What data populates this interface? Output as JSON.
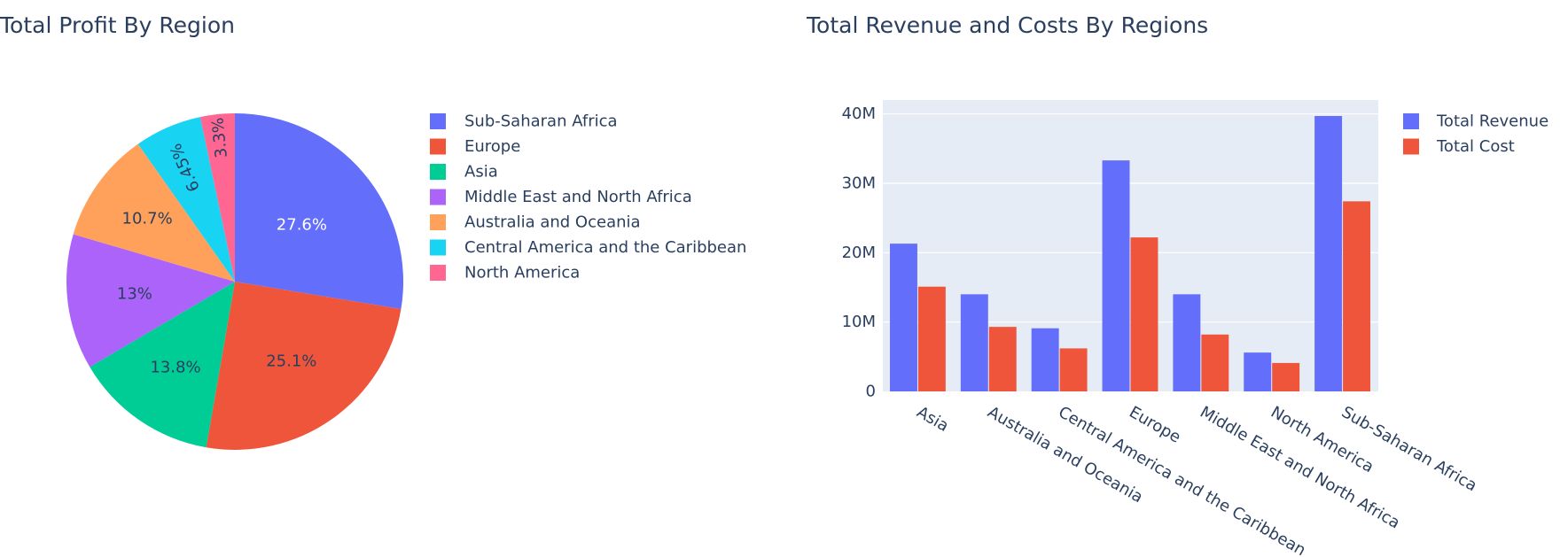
{
  "pie": {
    "title": "Total Profit By Region",
    "chart_data": {
      "type": "pie",
      "title": "Total Profit By Region",
      "legend_position": "right",
      "slices": [
        {
          "label": "Sub-Saharan Africa",
          "value": 27.6,
          "text": "27.6%",
          "color": "#636efa"
        },
        {
          "label": "Europe",
          "value": 25.1,
          "text": "25.1%",
          "color": "#ef553b"
        },
        {
          "label": "Asia",
          "value": 13.8,
          "text": "13.8%",
          "color": "#00cc96"
        },
        {
          "label": "Middle East and North Africa",
          "value": 13.0,
          "text": "13%",
          "color": "#ab63fa"
        },
        {
          "label": "Australia and Oceania",
          "value": 10.7,
          "text": "10.7%",
          "color": "#ffa15a"
        },
        {
          "label": "Central America and the Caribbean",
          "value": 6.45,
          "text": "6.45%",
          "color": "#19d3f3"
        },
        {
          "label": "North America",
          "value": 3.3,
          "text": "3.3%",
          "color": "#ff6692"
        }
      ]
    }
  },
  "bar": {
    "title": "Total Revenue and Costs By Regions",
    "chart_data": {
      "type": "bar",
      "title": "Total Revenue and Costs By Regions",
      "categories": [
        "Asia",
        "Australia and Oceania",
        "Central America and the Caribbean",
        "Europe",
        "Middle East and North Africa",
        "North America",
        "Sub-Saharan Africa"
      ],
      "series": [
        {
          "name": "Total Revenue",
          "color": "#636efa",
          "values": [
            21300000,
            14000000,
            9100000,
            33300000,
            14000000,
            5600000,
            39700000
          ]
        },
        {
          "name": "Total Cost",
          "color": "#ef553b",
          "values": [
            15100000,
            9300000,
            6200000,
            22200000,
            8200000,
            4100000,
            27400000
          ]
        }
      ],
      "ylim": [
        0,
        42000000
      ],
      "yticks": [
        0,
        10000000,
        20000000,
        30000000,
        40000000
      ],
      "ytick_labels": [
        "0",
        "10M",
        "20M",
        "30M",
        "40M"
      ],
      "xlabel": "",
      "ylabel": "",
      "grid": true,
      "plot_bgcolor": "#e5ecf6",
      "legend_position": "top-right"
    }
  }
}
